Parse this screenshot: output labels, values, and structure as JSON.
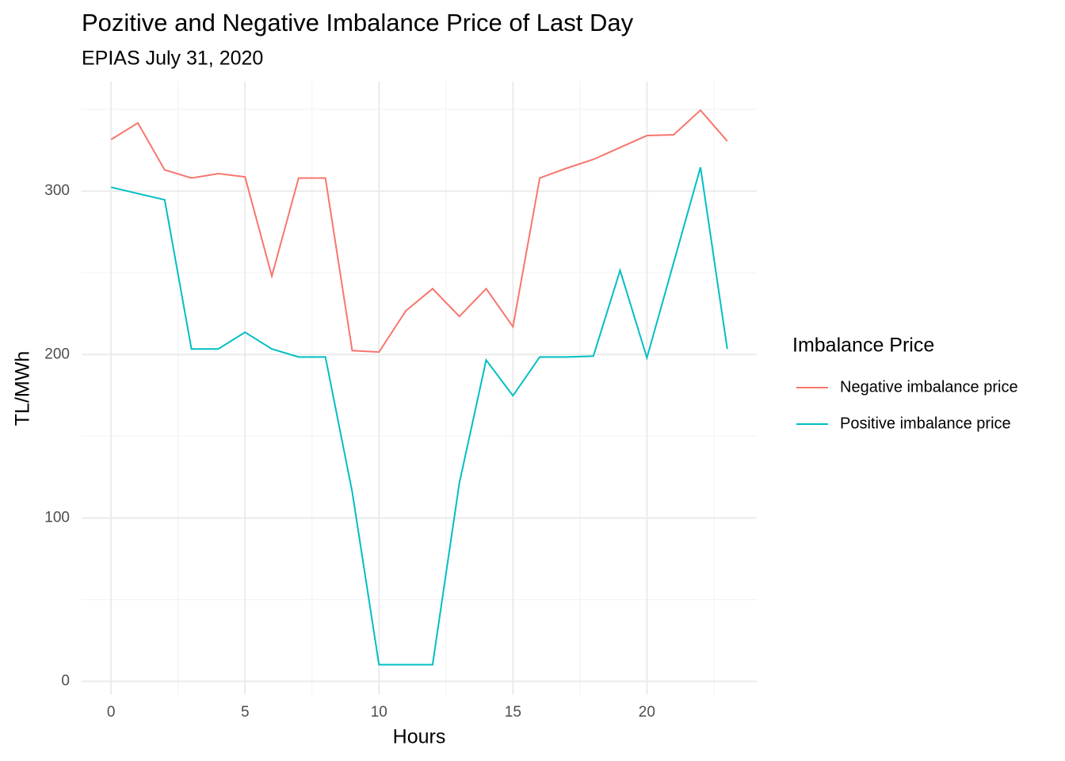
{
  "chart_data": {
    "type": "line",
    "title": "Pozitive and Negative Imbalance Price of Last Day",
    "subtitle": "EPIAS July 31, 2020",
    "x_label": "Hours",
    "y_label": "TL/MWh",
    "legend_title": "Imbalance Price",
    "legend_position": "right",
    "x": [
      0,
      1,
      2,
      3,
      4,
      5,
      6,
      7,
      8,
      9,
      10,
      11,
      12,
      13,
      14,
      15,
      16,
      17,
      18,
      19,
      20,
      21,
      22,
      23
    ],
    "series": [
      {
        "name": "Negative imbalance price",
        "color": "#F8766D",
        "values": [
          331.6,
          341.7,
          313,
          308,
          310.7,
          308.7,
          248,
          308,
          308,
          202.4,
          201.5,
          226.7,
          240.3,
          223.3,
          240.3,
          217,
          308,
          314,
          319.4,
          326.7,
          334,
          334.5,
          349.5,
          330.6
        ]
      },
      {
        "name": "Positive imbalance price",
        "color": "#00BFC4",
        "values": [
          302.4,
          298.5,
          294.7,
          203.4,
          203.4,
          213.6,
          203.4,
          198.5,
          198.5,
          116,
          10.2,
          10.2,
          10.2,
          121.4,
          196.6,
          174.8,
          198.5,
          198.5,
          199,
          251.5,
          198,
          256.3,
          314.6,
          203.4
        ]
      }
    ],
    "xlim": [
      -1.1,
      24.1
    ],
    "xticks": [
      0,
      5,
      10,
      15,
      20
    ],
    "ylim": [
      -8,
      367
    ],
    "yticks": [
      0,
      100,
      200,
      300
    ],
    "grid": true,
    "minor_grid": true
  }
}
